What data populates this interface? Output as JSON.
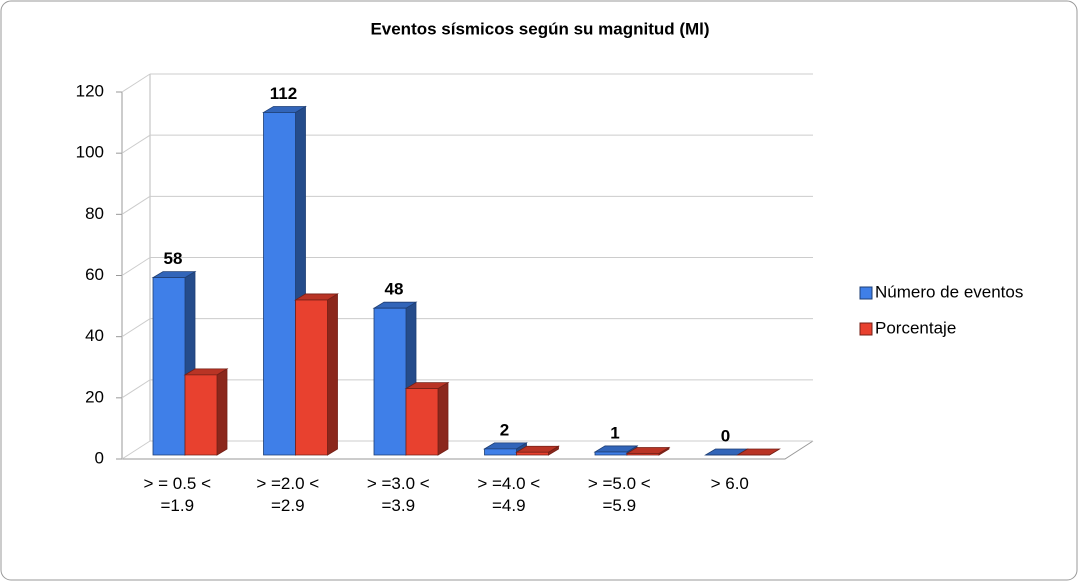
{
  "chart_data": {
    "type": "bar3d",
    "title": "Eventos sísmicos según su magnitud (Ml)",
    "categories": [
      "> = 0.5 < =1.9",
      "> =2.0 < =2.9",
      "> =3.0 < =3.9",
      "> =4.0 < =4.9",
      "> =5.0 < =5.9",
      "> 6.0"
    ],
    "series": [
      {
        "name": "Número de eventos",
        "color": "#3f7fe8",
        "values": [
          58,
          112,
          48,
          2,
          1,
          0
        ]
      },
      {
        "name": "Porcentaje",
        "color": "#e8412f",
        "values": [
          26.2,
          50.7,
          21.7,
          0.9,
          0.5,
          0
        ]
      }
    ],
    "ylim": [
      0,
      120
    ],
    "yticks": [
      0,
      20,
      40,
      60,
      80,
      100,
      120
    ],
    "grid": true,
    "legend": "right"
  }
}
